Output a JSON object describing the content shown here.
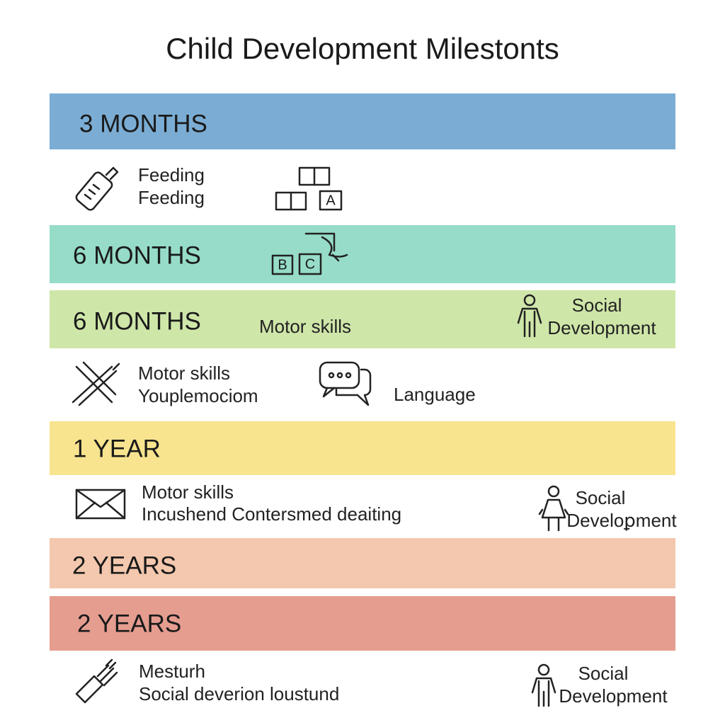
{
  "title": "Child Development Milestonts",
  "blocks": [
    {
      "heading": "3 MONTHS"
    },
    {
      "texts": [
        [
          "Feeding",
          "Feeding"
        ]
      ],
      "letters": [
        "A"
      ]
    },
    {
      "heading": "6 MONTHS",
      "letters": [
        "B",
        "C"
      ]
    },
    {
      "heading": "6 MONTHS",
      "texts": [
        [
          "Motor skills"
        ],
        [
          "Social",
          "Development"
        ]
      ]
    },
    {
      "texts": [
        [
          "Motor skills",
          "Youplemociom"
        ],
        [
          "Language"
        ]
      ]
    },
    {
      "heading": "1 YEAR"
    },
    {
      "texts": [
        [
          "Motor skills",
          "Incushend Contersmed deaiting"
        ],
        [
          "Social",
          "Develoꝑment"
        ]
      ]
    },
    {
      "heading": "2 YEARS"
    },
    {
      "heading": "2 YEARS"
    },
    {
      "texts": [
        [
          "Mesturh",
          "Social deverion loustund"
        ],
        [
          "Social",
          "Development"
        ]
      ]
    }
  ]
}
